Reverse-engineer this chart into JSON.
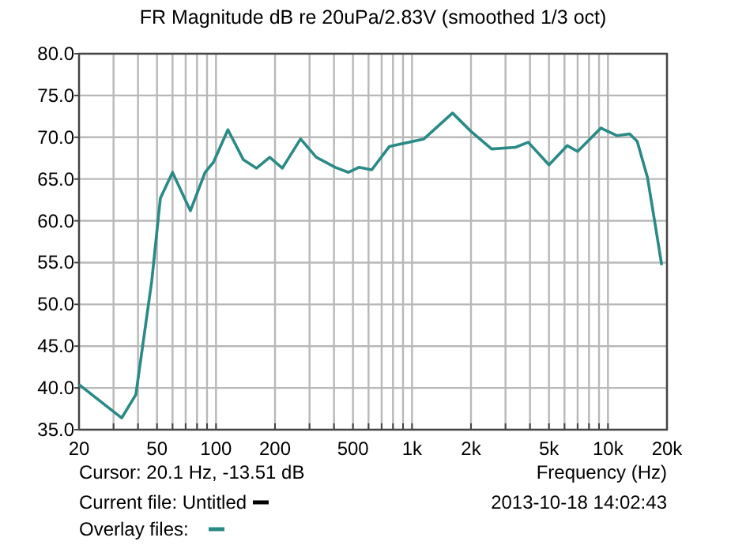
{
  "chart_data": {
    "type": "line",
    "title": "FR Magnitude dB re 20uPa/2.83V (smoothed 1/3 oct)",
    "xlabel": "Frequency (Hz)",
    "log": "x",
    "grid": true,
    "xlim": [
      20,
      20000
    ],
    "ylim": [
      35,
      80
    ],
    "xticks": [
      20,
      {
        "value": 30,
        "label": null
      },
      {
        "value": 40,
        "label": null
      },
      50,
      {
        "value": 60,
        "label": null
      },
      {
        "value": 70,
        "label": null
      },
      {
        "value": 80,
        "label": null
      },
      {
        "value": 90,
        "label": null
      },
      100,
      200,
      {
        "value": 300,
        "label": null
      },
      {
        "value": 400,
        "label": null
      },
      500,
      {
        "value": 600,
        "label": null
      },
      {
        "value": 700,
        "label": null
      },
      {
        "value": 800,
        "label": null
      },
      {
        "value": 900,
        "label": null
      },
      {
        "value": 1000,
        "label": "1k"
      },
      {
        "value": 2000,
        "label": "2k"
      },
      {
        "value": 3000,
        "label": null
      },
      {
        "value": 4000,
        "label": null
      },
      {
        "value": 5000,
        "label": "5k"
      },
      {
        "value": 6000,
        "label": null
      },
      {
        "value": 7000,
        "label": null
      },
      {
        "value": 8000,
        "label": null
      },
      {
        "value": 9000,
        "label": null
      },
      {
        "value": 10000,
        "label": "10k"
      },
      {
        "value": 20000,
        "label": "20k"
      }
    ],
    "yticks": [
      {
        "value": 35,
        "label": "35.0"
      },
      {
        "value": 40,
        "label": "40.0"
      },
      {
        "value": 45,
        "label": "45.0"
      },
      {
        "value": 50,
        "label": "50.0"
      },
      {
        "value": 55,
        "label": "55.0"
      },
      {
        "value": 60,
        "label": "60.0"
      },
      {
        "value": 65,
        "label": "65.0"
      },
      {
        "value": 70,
        "label": "70.0"
      },
      {
        "value": 75,
        "label": "75.0"
      },
      {
        "value": 80,
        "label": "80.0"
      }
    ],
    "x": [
      20,
      33,
      39,
      47,
      52,
      60,
      74,
      88,
      97,
      115,
      138,
      161,
      188,
      218,
      270,
      325,
      406,
      474,
      536,
      623,
      767,
      1150,
      1610,
      2000,
      2550,
      3370,
      3920,
      5000,
      6200,
      7000,
      9200,
      11100,
      12900,
      14100,
      15900,
      17400,
      18800
    ],
    "series": [
      {
        "color": "#2a8a86",
        "values": [
          40.4,
          36.4,
          39.2,
          52.8,
          62.7,
          65.8,
          61.2,
          65.8,
          67.0,
          70.9,
          67.3,
          66.3,
          67.6,
          66.3,
          69.8,
          67.6,
          66.4,
          65.8,
          66.4,
          66.1,
          68.9,
          69.8,
          72.9,
          70.7,
          68.6,
          68.8,
          69.4,
          66.7,
          69.0,
          68.3,
          71.1,
          70.2,
          70.4,
          69.5,
          65.2,
          59.6,
          54.7
        ]
      }
    ],
    "annotations": [
      "Cursor: 20.1 Hz, -13.51 dB",
      "Current file: Untitled",
      "Overlay files:",
      "2013-10-18  14:02:43"
    ]
  }
}
